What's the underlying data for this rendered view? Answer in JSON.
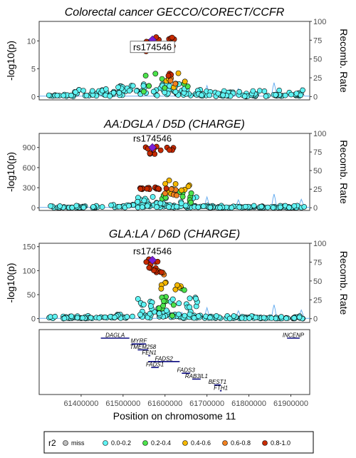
{
  "chart_data": [
    {
      "type": "scatter",
      "title": "Colorectal cancer GECCO/CORECT/CCFR",
      "ylabel": "-log10(p)",
      "y2label": "Recomb. Rate",
      "ylim": [
        -0.6,
        13.5
      ],
      "yticks": [
        0,
        5,
        10
      ],
      "y2lim": [
        -4.4,
        100
      ],
      "y2ticks": [
        0,
        25,
        50,
        75,
        100
      ],
      "xlim": [
        61300000,
        61945000
      ],
      "lead_snp": {
        "name": "rs174546",
        "x": 61570000,
        "y": 10.2,
        "label_boxed": true
      },
      "recomb_peaks": [
        [
          61605000,
          6
        ],
        [
          61640000,
          8
        ],
        [
          61700000,
          14
        ],
        [
          61775000,
          10
        ],
        [
          61860000,
          18
        ],
        [
          61925000,
          11
        ]
      ],
      "bg_max": 1.2,
      "bg_base": 0.2,
      "hump": {
        "peak": 2.5,
        "peak_x": 61565000,
        "width": 75000
      },
      "clusters": [
        {
          "r2": "0.8-1.0",
          "x": [
            61548000,
            61588000
          ],
          "y": [
            8.0,
            10.8
          ],
          "n": 9
        },
        {
          "r2": "0.8-1.0",
          "x": [
            61605000,
            61625000
          ],
          "y": [
            9.0,
            11.0
          ],
          "n": 5
        },
        {
          "r2": "0.8-1.0",
          "x": [
            61605000,
            61615000
          ],
          "y": [
            3.5,
            5.0
          ],
          "n": 3
        },
        {
          "r2": "0.4-0.6",
          "x": [
            61595000,
            61650000
          ],
          "y": [
            1.5,
            4.5
          ],
          "n": 6
        },
        {
          "r2": "0.6-0.8",
          "x": [
            61610000,
            61625000
          ],
          "y": [
            1.2,
            4.0
          ],
          "n": 3
        },
        {
          "r2": "0.2-0.4",
          "x": [
            61540000,
            61665000
          ],
          "y": [
            0.8,
            4.5
          ],
          "n": 8
        },
        {
          "r2": "0.0-0.2",
          "x": [
            61540000,
            61665000
          ],
          "y": [
            0.3,
            2.5
          ],
          "n": 18
        }
      ]
    },
    {
      "type": "scatter",
      "title": "AA:DGLA / D5D (CHARGE)",
      "ylabel": "-log10(p)",
      "y2label": "Recomb. Rate",
      "ylim": [
        -40,
        1110
      ],
      "yticks": [
        0,
        300,
        600,
        900
      ],
      "y2lim": [
        -3.6,
        100
      ],
      "y2ticks": [
        0,
        25,
        50,
        75,
        100
      ],
      "xlim": [
        61300000,
        61945000
      ],
      "lead_snp": {
        "name": "rs174546",
        "x": 61570000,
        "y": 900,
        "label_boxed": false
      },
      "recomb_peaks": [
        [
          61605000,
          6
        ],
        [
          61640000,
          8
        ],
        [
          61700000,
          14
        ],
        [
          61775000,
          10
        ],
        [
          61860000,
          18
        ],
        [
          61925000,
          11
        ]
      ],
      "bg_max": 30,
      "bg_base": 5,
      "hump": {
        "peak": 60,
        "peak_x": 61565000,
        "width": 80000
      },
      "clusters": [
        {
          "r2": "0.8-1.0",
          "x": [
            61548000,
            61592000
          ],
          "y": [
            800,
            920
          ],
          "n": 9
        },
        {
          "r2": "0.8-1.0",
          "x": [
            61604000,
            61622000
          ],
          "y": [
            860,
            900
          ],
          "n": 4
        },
        {
          "r2": "0.8-1.0",
          "x": [
            61540000,
            61615000
          ],
          "y": [
            270,
            310
          ],
          "n": 16
        },
        {
          "r2": "0.6-0.8",
          "x": [
            61595000,
            61640000
          ],
          "y": [
            180,
            290
          ],
          "n": 5
        },
        {
          "r2": "0.4-0.6",
          "x": [
            61590000,
            61660000
          ],
          "y": [
            200,
            420
          ],
          "n": 10
        },
        {
          "r2": "0.2-0.4",
          "x": [
            61580000,
            61665000
          ],
          "y": [
            60,
            250
          ],
          "n": 10
        },
        {
          "r2": "0.0-0.2",
          "x": [
            61530000,
            61680000
          ],
          "y": [
            10,
            170
          ],
          "n": 26
        }
      ]
    },
    {
      "type": "scatter",
      "title": "GLA:LA / D6D (CHARGE)",
      "ylabel": "-log10(p)",
      "y2label": "Recomb. Rate",
      "ylim": [
        -8,
        157
      ],
      "yticks": [
        0,
        50,
        100,
        150
      ],
      "y2lim": [
        -5,
        100
      ],
      "y2ticks": [
        0,
        25,
        50,
        75,
        100
      ],
      "xlim": [
        61300000,
        61945000
      ],
      "lead_snp": {
        "name": "rs174546",
        "x": 61570000,
        "y": 122,
        "label_boxed": false
      },
      "recomb_peaks": [
        [
          61605000,
          6
        ],
        [
          61640000,
          8
        ],
        [
          61700000,
          14
        ],
        [
          61775000,
          10
        ],
        [
          61860000,
          18
        ],
        [
          61925000,
          11
        ]
      ],
      "bg_max": 5,
      "bg_base": 1,
      "hump": {
        "peak": 12,
        "peak_x": 61565000,
        "width": 80000
      },
      "clusters": [
        {
          "r2": "0.8-1.0",
          "x": [
            61548000,
            61592000
          ],
          "y": [
            95,
            125
          ],
          "n": 14
        },
        {
          "r2": "0.6-0.8",
          "x": [
            61570000,
            61600000
          ],
          "y": [
            90,
            110
          ],
          "n": 3
        },
        {
          "r2": "0.4-0.6",
          "x": [
            61590000,
            61640000
          ],
          "y": [
            45,
            80
          ],
          "n": 8
        },
        {
          "r2": "0.2-0.4",
          "x": [
            61560000,
            61650000
          ],
          "y": [
            5,
            65
          ],
          "n": 12
        },
        {
          "r2": "0.0-0.2",
          "x": [
            61530000,
            61680000
          ],
          "y": [
            3,
            45
          ],
          "n": 28
        }
      ]
    }
  ],
  "genes": {
    "xlabel": "Position on chromosome 11",
    "xticks": [
      61400000,
      61500000,
      61600000,
      61700000,
      61800000,
      61900000
    ],
    "xtick_labels": [
      "61400000",
      "61500000",
      "61600000",
      "61700000",
      "61800000",
      "61900000"
    ],
    "items": [
      {
        "name": "DAGLA",
        "start": 61447000,
        "end": 61515000,
        "row": 0
      },
      {
        "name": "INCENP",
        "start": 61891000,
        "end": 61921000,
        "row": 0
      },
      {
        "name": "MYRF",
        "start": 61520000,
        "end": 61555000,
        "row": 1
      },
      {
        "name": "TMEM258",
        "start": 61535000,
        "end": 61560000,
        "row": 2
      },
      {
        "name": "FEN1",
        "start": 61560000,
        "end": 61565000,
        "row": 3
      },
      {
        "name": "FADS2",
        "start": 61560000,
        "end": 61635000,
        "row": 4
      },
      {
        "name": "FADS1",
        "start": 61567000,
        "end": 61585000,
        "row": 5
      },
      {
        "name": "FADS3",
        "start": 61640000,
        "end": 61660000,
        "row": 6
      },
      {
        "name": "RAB3IL1",
        "start": 61665000,
        "end": 61685000,
        "row": 7
      },
      {
        "name": "BEST1",
        "start": 61717000,
        "end": 61733000,
        "row": 8
      },
      {
        "name": "FTH1",
        "start": 61731000,
        "end": 61735000,
        "row": 9
      }
    ]
  },
  "legend": {
    "title": "r2",
    "items": [
      {
        "label": "miss",
        "color": "#bdbdbd"
      },
      {
        "label": "0.0-0.2",
        "color": "#5ff3f3"
      },
      {
        "label": "0.2-0.4",
        "color": "#4ce34c"
      },
      {
        "label": "0.4-0.6",
        "color": "#f5b800"
      },
      {
        "label": "0.6-0.8",
        "color": "#f08020"
      },
      {
        "label": "0.8-1.0",
        "color": "#c72a00"
      }
    ],
    "lead_color": "#7a1fd6",
    "recomb_color": "#6aaef0"
  }
}
